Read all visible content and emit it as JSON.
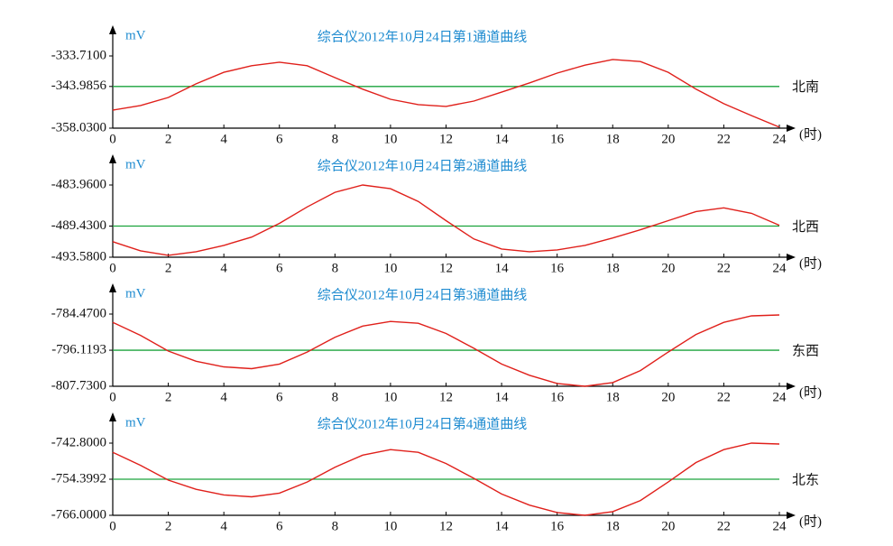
{
  "chart_data": [
    {
      "type": "line",
      "title": "综合仪2012年10月24日第1通道曲线",
      "y_label": "mV",
      "x_label": "(时)",
      "x": [
        0,
        1,
        2,
        3,
        4,
        5,
        6,
        7,
        8,
        9,
        10,
        11,
        12,
        13,
        14,
        15,
        16,
        17,
        18,
        19,
        20,
        21,
        22,
        23,
        24
      ],
      "values": [
        -351.95,
        -350.4,
        -347.7,
        -343.1,
        -339.2,
        -337.0,
        -335.8,
        -337.0,
        -341.0,
        -344.9,
        -348.3,
        -350.1,
        -350.7,
        -348.9,
        -345.9,
        -342.8,
        -339.5,
        -336.8,
        -334.9,
        -335.6,
        -339.2,
        -344.9,
        -349.8,
        -353.8,
        -357.7
      ],
      "color": "#e0201b",
      "xlim": [
        0,
        24
      ],
      "xticks": [
        0,
        2,
        4,
        6,
        8,
        10,
        12,
        14,
        16,
        18,
        20,
        22,
        24
      ],
      "ylim": [
        -358.03,
        -333.71
      ],
      "yticks": [
        {
          "value": -358.03,
          "label": "-358.0300"
        },
        -343.9856,
        {
          "value": -333.71,
          "label": "-333.7100"
        }
      ],
      "reference_line": {
        "value": -343.9856,
        "label": "北南",
        "color": "#1aa33c"
      }
    },
    {
      "type": "line",
      "title": "综合仪2012年10月24日第2通道曲线",
      "y_label": "mV",
      "x_label": "(时)",
      "x": [
        0,
        1,
        2,
        3,
        4,
        5,
        6,
        7,
        8,
        9,
        10,
        11,
        12,
        13,
        14,
        15,
        16,
        17,
        18,
        19,
        20,
        21,
        22,
        23,
        24
      ],
      "values": [
        -491.51,
        -492.73,
        -493.33,
        -492.85,
        -492.0,
        -490.9,
        -489.07,
        -486.88,
        -484.93,
        -483.96,
        -484.45,
        -486.15,
        -488.71,
        -491.15,
        -492.49,
        -492.85,
        -492.61,
        -492.0,
        -491.02,
        -489.92,
        -488.71,
        -487.49,
        -487.0,
        -487.74,
        -489.32
      ],
      "color": "#e0201b",
      "xlim": [
        0,
        24
      ],
      "xticks": [
        0,
        2,
        4,
        6,
        8,
        10,
        12,
        14,
        16,
        18,
        20,
        22,
        24
      ],
      "ylim": [
        -493.58,
        -483.96
      ],
      "yticks": [
        {
          "value": -493.58,
          "label": "-493.5800"
        },
        {
          "value": -489.43,
          "label": "-489.4300"
        },
        {
          "value": -483.96,
          "label": "-483.9600"
        }
      ],
      "reference_line": {
        "value": -489.43,
        "label": "北西",
        "color": "#1aa33c"
      }
    },
    {
      "type": "line",
      "title": "综合仪2012年10月24日第3通道曲线",
      "y_label": "mV",
      "x_label": "(时)",
      "x": [
        0,
        1,
        2,
        3,
        4,
        5,
        6,
        7,
        8,
        9,
        10,
        11,
        12,
        13,
        14,
        15,
        16,
        17,
        18,
        19,
        20,
        21,
        22,
        23,
        24
      ],
      "values": [
        -787.15,
        -791.33,
        -796.4,
        -799.68,
        -801.47,
        -802.07,
        -800.58,
        -796.7,
        -791.93,
        -788.35,
        -786.86,
        -787.45,
        -790.73,
        -795.5,
        -800.58,
        -804.17,
        -806.84,
        -807.73,
        -806.54,
        -802.66,
        -796.7,
        -791.03,
        -787.15,
        -785.06,
        -784.77
      ],
      "color": "#e0201b",
      "xlim": [
        0,
        24
      ],
      "xticks": [
        0,
        2,
        4,
        6,
        8,
        10,
        12,
        14,
        16,
        18,
        20,
        22,
        24
      ],
      "ylim": [
        -807.73,
        -784.47
      ],
      "yticks": [
        {
          "value": -807.73,
          "label": "-807.7300"
        },
        -796.1193,
        {
          "value": -784.47,
          "label": "-784.4700"
        }
      ],
      "reference_line": {
        "value": -796.1193,
        "label": "东西",
        "color": "#1aa33c"
      }
    },
    {
      "type": "line",
      "title": "综合仪2012年10月24日第4通道曲线",
      "y_label": "mV",
      "x_label": "(时)",
      "x": [
        0,
        1,
        2,
        3,
        4,
        5,
        6,
        7,
        8,
        9,
        10,
        11,
        12,
        13,
        14,
        15,
        16,
        17,
        18,
        19,
        20,
        21,
        22,
        23,
        24
      ],
      "values": [
        -745.77,
        -749.93,
        -754.69,
        -757.66,
        -759.46,
        -760.05,
        -758.86,
        -755.29,
        -750.53,
        -746.66,
        -744.88,
        -745.77,
        -749.34,
        -754.1,
        -759.16,
        -762.73,
        -765.11,
        -766.0,
        -764.81,
        -761.24,
        -755.29,
        -749.04,
        -744.88,
        -742.8,
        -743.1
      ],
      "color": "#e0201b",
      "xlim": [
        0,
        24
      ],
      "xticks": [
        0,
        2,
        4,
        6,
        8,
        10,
        12,
        14,
        16,
        18,
        20,
        22,
        24
      ],
      "ylim": [
        -766.0,
        -742.8
      ],
      "yticks": [
        {
          "value": -766.0,
          "label": "-766.0000"
        },
        -754.3992,
        {
          "value": -742.8,
          "label": "-742.8000"
        }
      ],
      "reference_line": {
        "value": -754.3992,
        "label": "北东",
        "color": "#1aa33c"
      }
    }
  ]
}
